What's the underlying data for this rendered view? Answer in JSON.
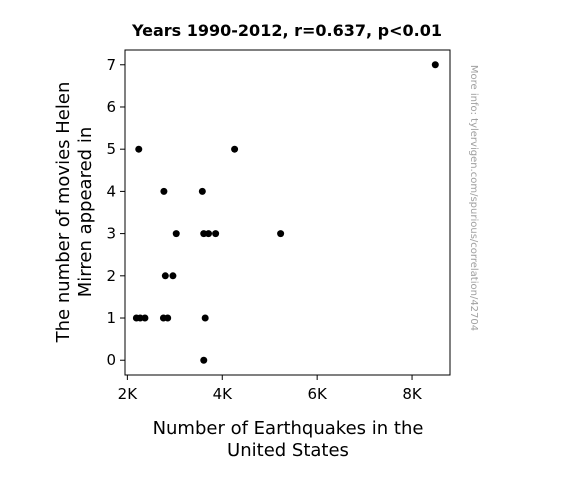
{
  "chart_data": {
    "type": "scatter",
    "title": "Years 1990-2012, r=0.637, p<0.01",
    "xlabel": [
      "Number of Earthquakes in the",
      "United States"
    ],
    "ylabel": [
      "The number of movies Helen",
      "Mirren appeared in"
    ],
    "xlim": [
      1950,
      8800
    ],
    "ylim": [
      -0.35,
      7.35
    ],
    "x_ticks": [
      {
        "value": 2000,
        "label": "2K"
      },
      {
        "value": 4000,
        "label": "4K"
      },
      {
        "value": 6000,
        "label": "6K"
      },
      {
        "value": 8000,
        "label": "8K"
      }
    ],
    "y_ticks": [
      {
        "value": 0,
        "label": "0"
      },
      {
        "value": 1,
        "label": "1"
      },
      {
        "value": 2,
        "label": "2"
      },
      {
        "value": 3,
        "label": "3"
      },
      {
        "value": 4,
        "label": "4"
      },
      {
        "value": 5,
        "label": "5"
      },
      {
        "value": 6,
        "label": "6"
      },
      {
        "value": 7,
        "label": "7"
      }
    ],
    "grid": false,
    "marker_color": "#000000",
    "watermark": "More info: tylervigen.com/spurious/correlation/42704",
    "points": [
      {
        "x": 2190,
        "y": 1
      },
      {
        "x": 2270,
        "y": 1
      },
      {
        "x": 2370,
        "y": 1
      },
      {
        "x": 2240,
        "y": 5
      },
      {
        "x": 2770,
        "y": 4
      },
      {
        "x": 2760,
        "y": 1
      },
      {
        "x": 2850,
        "y": 1
      },
      {
        "x": 2800,
        "y": 2
      },
      {
        "x": 2960,
        "y": 2
      },
      {
        "x": 3030,
        "y": 3
      },
      {
        "x": 3580,
        "y": 4
      },
      {
        "x": 3610,
        "y": 3
      },
      {
        "x": 3710,
        "y": 3
      },
      {
        "x": 3860,
        "y": 3
      },
      {
        "x": 3640,
        "y": 1
      },
      {
        "x": 3610,
        "y": 0
      },
      {
        "x": 4260,
        "y": 5
      },
      {
        "x": 5230,
        "y": 3
      },
      {
        "x": 8490,
        "y": 7
      }
    ]
  }
}
